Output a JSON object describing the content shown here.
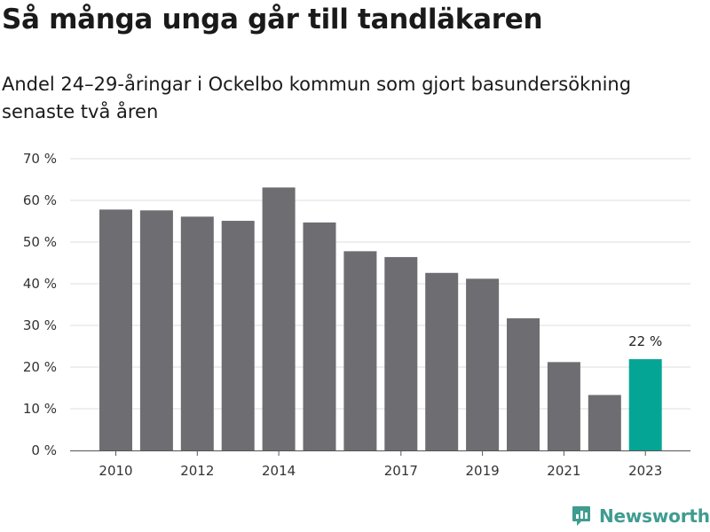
{
  "title": "Så många unga går till tandläkaren",
  "subtitle": "Andel 24–29-åringar i Ockelbo kommun som gjort basundersökning senaste två åren",
  "brand": "Newsworthy",
  "colors": {
    "bar": "#6e6d72",
    "highlight": "#05a596",
    "grid": "#dcdcdc",
    "brand": "#3f9c90"
  },
  "chart_data": {
    "type": "bar",
    "categories": [
      "2010",
      "2011",
      "2012",
      "2013",
      "2014",
      "2015",
      "2016",
      "2017",
      "2018",
      "2019",
      "2020",
      "2021",
      "2022",
      "2023"
    ],
    "tick_labels": [
      "2010",
      "",
      "2012",
      "",
      "2014",
      "",
      "",
      "2017",
      "",
      "2019",
      "",
      "2021",
      "",
      "2023"
    ],
    "values": [
      57.8,
      57.6,
      56.1,
      55.1,
      63.1,
      54.7,
      47.8,
      46.4,
      42.6,
      41.2,
      31.7,
      21.2,
      13.3,
      21.9
    ],
    "highlight_index": 13,
    "highlight_label": "22 %",
    "ylim": [
      0,
      70
    ],
    "yticks": [
      0,
      10,
      20,
      30,
      40,
      50,
      60,
      70
    ],
    "ytick_labels": [
      "0 %",
      "10 %",
      "20 %",
      "30 %",
      "40 %",
      "50 %",
      "60 %",
      "70 %"
    ],
    "title": "Så många unga går till tandläkaren",
    "xlabel": "",
    "ylabel": "",
    "grid": true
  }
}
